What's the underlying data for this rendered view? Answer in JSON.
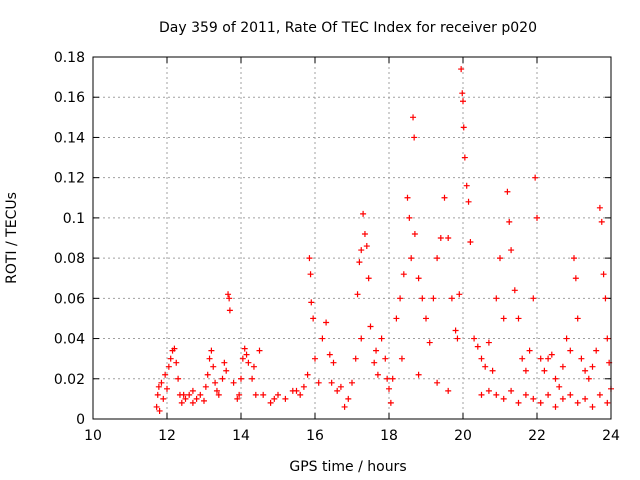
{
  "chart_data": {
    "type": "scatter",
    "title": "Day 359 of 2011, Rate Of TEC Index for receiver p020",
    "xlabel": "GPS time / hours",
    "ylabel": "ROTI / TECUs",
    "xlim": [
      10,
      24
    ],
    "ylim": [
      0,
      0.18
    ],
    "grid": true,
    "marker": "+",
    "series_color": "#ff0000",
    "x_ticks": [
      "10",
      "12",
      "14",
      "16",
      "18",
      "20",
      "22",
      "24"
    ],
    "y_ticks": [
      "0",
      "0.02",
      "0.04",
      "0.06",
      "0.08",
      "0.1",
      "0.12",
      "0.14",
      "0.16",
      "0.18"
    ],
    "series": [
      {
        "name": "ROTI",
        "points": [
          [
            11.72,
            0.006
          ],
          [
            11.75,
            0.012
          ],
          [
            11.78,
            0.016
          ],
          [
            11.8,
            0.004
          ],
          [
            11.85,
            0.018
          ],
          [
            11.9,
            0.01
          ],
          [
            11.95,
            0.022
          ],
          [
            12.0,
            0.015
          ],
          [
            12.05,
            0.026
          ],
          [
            12.1,
            0.03
          ],
          [
            12.15,
            0.034
          ],
          [
            12.2,
            0.035
          ],
          [
            12.25,
            0.028
          ],
          [
            12.3,
            0.02
          ],
          [
            12.35,
            0.012
          ],
          [
            12.4,
            0.008
          ],
          [
            12.5,
            0.01
          ],
          [
            12.6,
            0.012
          ],
          [
            12.7,
            0.008
          ],
          [
            12.8,
            0.01
          ],
          [
            12.9,
            0.012
          ],
          [
            13.0,
            0.009
          ],
          [
            13.05,
            0.016
          ],
          [
            13.1,
            0.022
          ],
          [
            13.15,
            0.03
          ],
          [
            13.2,
            0.034
          ],
          [
            13.25,
            0.026
          ],
          [
            13.3,
            0.018
          ],
          [
            13.4,
            0.012
          ],
          [
            13.5,
            0.02
          ],
          [
            13.55,
            0.028
          ],
          [
            13.6,
            0.024
          ],
          [
            13.65,
            0.062
          ],
          [
            13.68,
            0.06
          ],
          [
            13.7,
            0.054
          ],
          [
            13.8,
            0.018
          ],
          [
            13.9,
            0.01
          ],
          [
            14.0,
            0.02
          ],
          [
            14.05,
            0.03
          ],
          [
            14.1,
            0.035
          ],
          [
            14.15,
            0.032
          ],
          [
            14.2,
            0.028
          ],
          [
            14.3,
            0.02
          ],
          [
            14.4,
            0.012
          ],
          [
            14.5,
            0.034
          ],
          [
            14.6,
            0.012
          ],
          [
            14.8,
            0.008
          ],
          [
            15.0,
            0.012
          ],
          [
            15.2,
            0.01
          ],
          [
            15.4,
            0.014
          ],
          [
            15.6,
            0.012
          ],
          [
            15.7,
            0.016
          ],
          [
            15.8,
            0.022
          ],
          [
            15.85,
            0.08
          ],
          [
            15.88,
            0.072
          ],
          [
            15.9,
            0.058
          ],
          [
            15.95,
            0.05
          ],
          [
            16.0,
            0.03
          ],
          [
            16.1,
            0.018
          ],
          [
            16.2,
            0.04
          ],
          [
            16.3,
            0.048
          ],
          [
            16.4,
            0.032
          ],
          [
            16.5,
            0.028
          ],
          [
            16.6,
            0.014
          ],
          [
            16.7,
            0.016
          ],
          [
            16.8,
            0.006
          ],
          [
            16.9,
            0.01
          ],
          [
            17.0,
            0.018
          ],
          [
            17.1,
            0.03
          ],
          [
            17.15,
            0.062
          ],
          [
            17.2,
            0.078
          ],
          [
            17.25,
            0.084
          ],
          [
            17.3,
            0.102
          ],
          [
            17.35,
            0.092
          ],
          [
            17.4,
            0.086
          ],
          [
            17.45,
            0.07
          ],
          [
            17.5,
            0.046
          ],
          [
            17.6,
            0.028
          ],
          [
            17.7,
            0.022
          ],
          [
            17.8,
            0.04
          ],
          [
            17.9,
            0.03
          ],
          [
            17.95,
            0.02
          ],
          [
            18.0,
            0.015
          ],
          [
            18.05,
            0.008
          ],
          [
            18.1,
            0.02
          ],
          [
            18.2,
            0.05
          ],
          [
            18.3,
            0.06
          ],
          [
            18.4,
            0.072
          ],
          [
            18.5,
            0.11
          ],
          [
            18.55,
            0.1
          ],
          [
            18.6,
            0.08
          ],
          [
            18.65,
            0.15
          ],
          [
            18.68,
            0.14
          ],
          [
            18.7,
            0.092
          ],
          [
            18.8,
            0.07
          ],
          [
            18.9,
            0.06
          ],
          [
            19.0,
            0.05
          ],
          [
            19.1,
            0.038
          ],
          [
            19.2,
            0.06
          ],
          [
            19.3,
            0.08
          ],
          [
            19.4,
            0.09
          ],
          [
            19.5,
            0.11
          ],
          [
            19.6,
            0.09
          ],
          [
            19.7,
            0.06
          ],
          [
            19.8,
            0.044
          ],
          [
            19.85,
            0.04
          ],
          [
            19.9,
            0.062
          ],
          [
            19.95,
            0.174
          ],
          [
            19.98,
            0.162
          ],
          [
            20.0,
            0.158
          ],
          [
            20.02,
            0.145
          ],
          [
            20.05,
            0.13
          ],
          [
            20.1,
            0.116
          ],
          [
            20.15,
            0.108
          ],
          [
            20.2,
            0.088
          ],
          [
            20.3,
            0.04
          ],
          [
            20.4,
            0.036
          ],
          [
            20.5,
            0.03
          ],
          [
            20.6,
            0.026
          ],
          [
            20.7,
            0.038
          ],
          [
            20.8,
            0.024
          ],
          [
            20.9,
            0.06
          ],
          [
            21.0,
            0.08
          ],
          [
            21.1,
            0.05
          ],
          [
            21.2,
            0.113
          ],
          [
            21.25,
            0.098
          ],
          [
            21.3,
            0.084
          ],
          [
            21.4,
            0.064
          ],
          [
            21.5,
            0.05
          ],
          [
            21.6,
            0.03
          ],
          [
            21.7,
            0.024
          ],
          [
            21.8,
            0.034
          ],
          [
            21.9,
            0.06
          ],
          [
            21.95,
            0.12
          ],
          [
            22.0,
            0.1
          ],
          [
            22.1,
            0.03
          ],
          [
            22.2,
            0.024
          ],
          [
            22.3,
            0.03
          ],
          [
            22.4,
            0.032
          ],
          [
            22.5,
            0.02
          ],
          [
            22.6,
            0.016
          ],
          [
            22.7,
            0.026
          ],
          [
            22.8,
            0.04
          ],
          [
            22.9,
            0.034
          ],
          [
            23.0,
            0.08
          ],
          [
            23.05,
            0.07
          ],
          [
            23.1,
            0.05
          ],
          [
            23.2,
            0.03
          ],
          [
            23.3,
            0.024
          ],
          [
            23.4,
            0.02
          ],
          [
            23.5,
            0.026
          ],
          [
            23.6,
            0.034
          ],
          [
            23.7,
            0.105
          ],
          [
            23.75,
            0.098
          ],
          [
            23.8,
            0.072
          ],
          [
            23.85,
            0.06
          ],
          [
            23.9,
            0.04
          ],
          [
            23.95,
            0.028
          ],
          [
            24.0,
            0.015
          ],
          [
            20.5,
            0.012
          ],
          [
            20.7,
            0.014
          ],
          [
            20.9,
            0.012
          ],
          [
            21.1,
            0.01
          ],
          [
            21.3,
            0.014
          ],
          [
            21.5,
            0.008
          ],
          [
            21.7,
            0.012
          ],
          [
            21.9,
            0.01
          ],
          [
            22.1,
            0.008
          ],
          [
            22.3,
            0.012
          ],
          [
            22.5,
            0.006
          ],
          [
            22.7,
            0.01
          ],
          [
            22.9,
            0.012
          ],
          [
            23.1,
            0.008
          ],
          [
            23.3,
            0.01
          ],
          [
            23.5,
            0.006
          ],
          [
            23.7,
            0.012
          ],
          [
            23.9,
            0.008
          ],
          [
            19.3,
            0.018
          ],
          [
            19.6,
            0.014
          ],
          [
            18.8,
            0.022
          ],
          [
            18.35,
            0.03
          ],
          [
            17.65,
            0.034
          ],
          [
            17.25,
            0.04
          ],
          [
            16.45,
            0.018
          ],
          [
            15.5,
            0.014
          ],
          [
            14.9,
            0.01
          ],
          [
            14.35,
            0.026
          ],
          [
            12.45,
            0.012
          ],
          [
            12.7,
            0.014
          ],
          [
            13.35,
            0.014
          ],
          [
            13.95,
            0.012
          ]
        ]
      }
    ]
  }
}
